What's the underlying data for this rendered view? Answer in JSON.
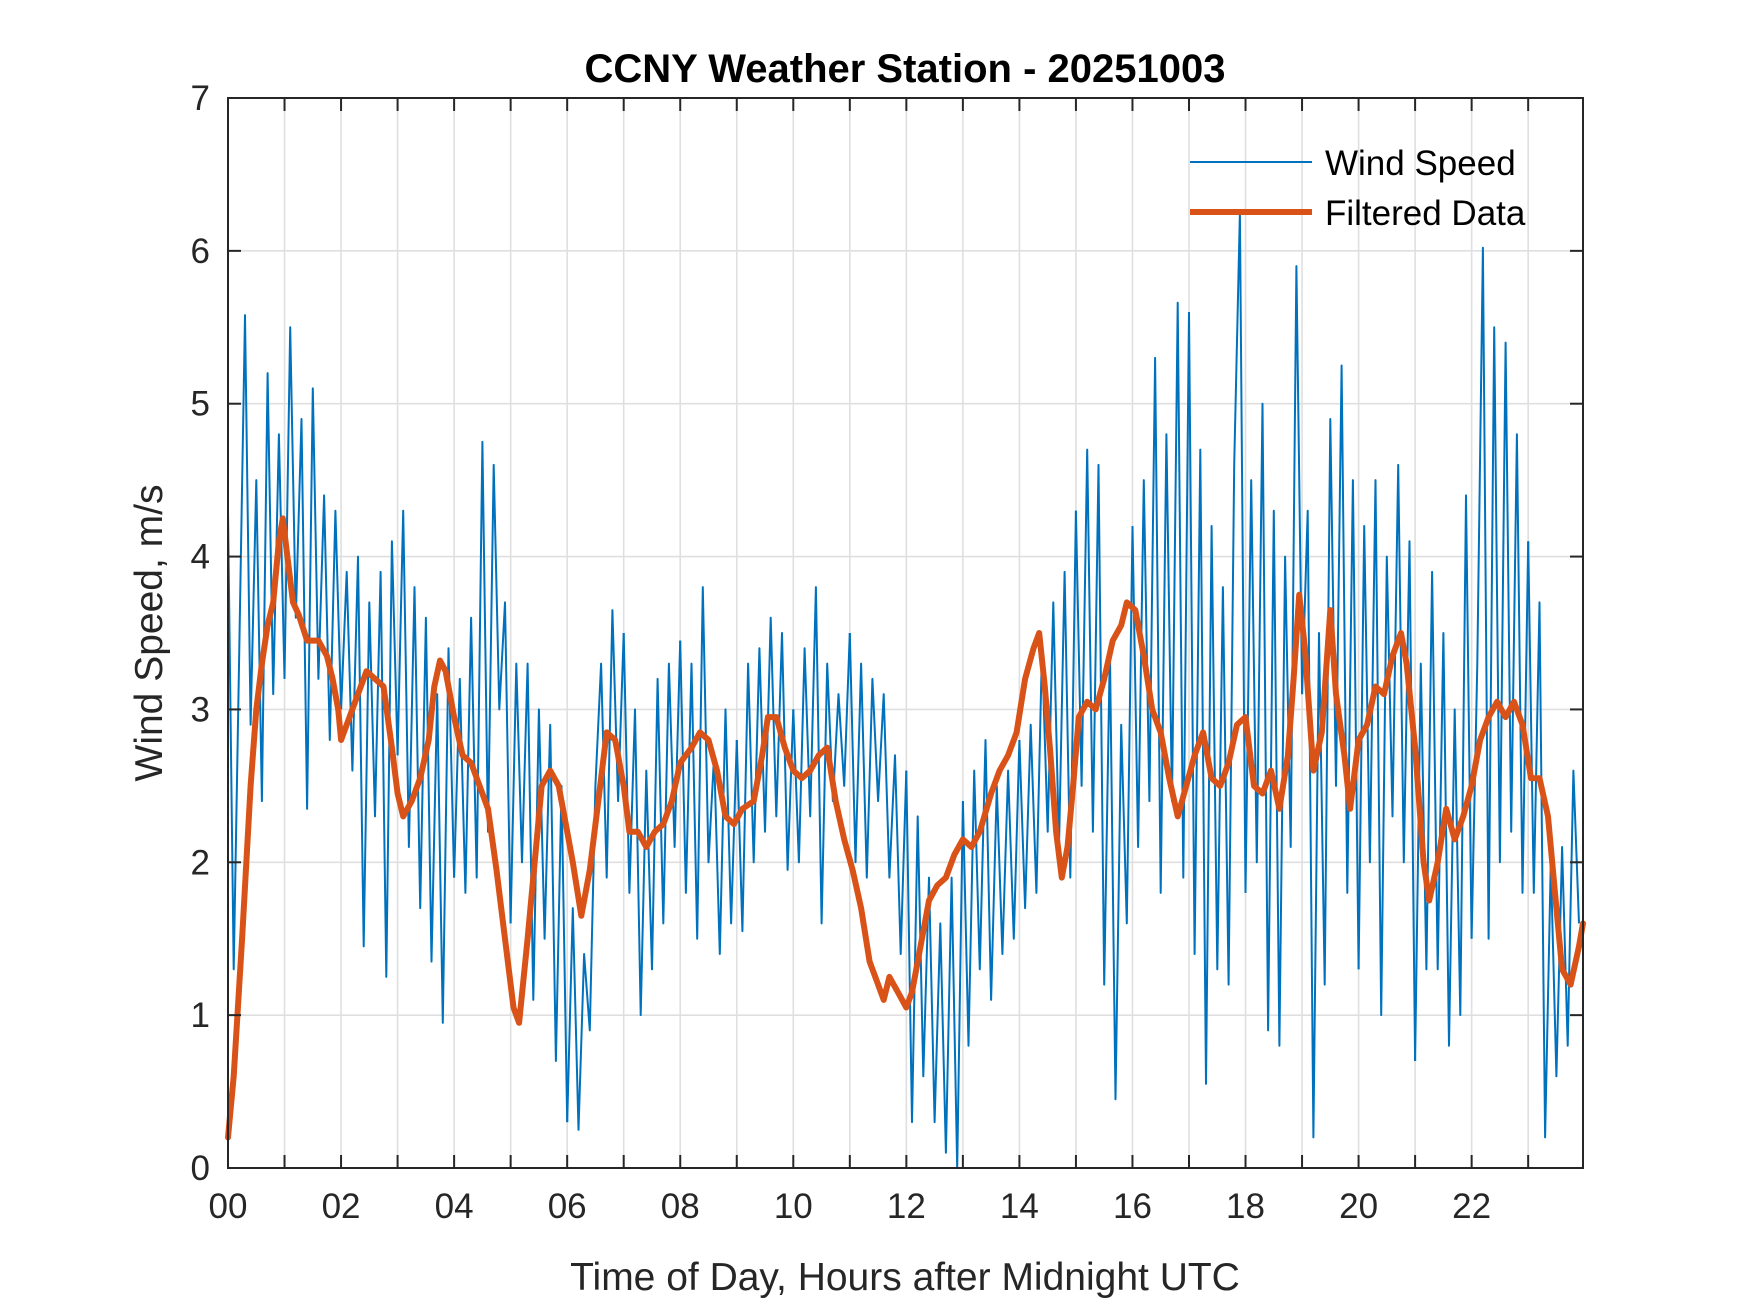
{
  "chart_data": {
    "type": "line",
    "title": "CCNY Weather Station - 20251003",
    "xlabel": "Time of Day, Hours after Midnight UTC",
    "ylabel": "Wind Speed, m/s",
    "xlim": [
      0,
      23.97
    ],
    "ylim": [
      0,
      7
    ],
    "grid": true,
    "legend_position": "top-right",
    "x_ticks": [
      0,
      2,
      4,
      6,
      8,
      10,
      12,
      14,
      16,
      18,
      20,
      22
    ],
    "x_tick_labels": [
      "00",
      "02",
      "04",
      "06",
      "08",
      "10",
      "12",
      "14",
      "16",
      "18",
      "20",
      "22"
    ],
    "x_minor_grid_step": 1,
    "y_ticks": [
      0,
      1,
      2,
      3,
      4,
      5,
      6,
      7
    ],
    "y_tick_labels": [
      "0",
      "1",
      "2",
      "3",
      "4",
      "5",
      "6",
      "7"
    ],
    "colors": {
      "wind_speed": "#0072BD",
      "filtered": "#D95319"
    },
    "series": [
      {
        "name": "Wind Speed",
        "x_start": 0,
        "x_step": 0.1,
        "values": [
          4.3,
          1.3,
          3.4,
          5.58,
          2.9,
          4.5,
          2.4,
          5.2,
          3.1,
          4.8,
          3.2,
          5.5,
          3.6,
          4.9,
          2.35,
          5.1,
          3.2,
          4.4,
          2.8,
          4.3,
          3.0,
          3.9,
          2.6,
          4.0,
          1.45,
          3.7,
          2.3,
          3.9,
          1.25,
          4.1,
          2.7,
          4.3,
          2.1,
          3.8,
          1.7,
          3.6,
          1.35,
          3.1,
          0.95,
          3.4,
          1.9,
          3.2,
          1.8,
          3.6,
          1.9,
          4.75,
          2.2,
          4.6,
          3.0,
          3.7,
          1.6,
          3.3,
          2.0,
          3.3,
          1.1,
          3.0,
          1.5,
          2.9,
          0.7,
          2.5,
          0.3,
          1.7,
          0.25,
          1.4,
          0.9,
          2.5,
          3.3,
          1.9,
          3.65,
          2.4,
          3.5,
          1.8,
          3.0,
          1.0,
          2.6,
          1.3,
          3.2,
          1.6,
          3.3,
          2.1,
          3.45,
          1.8,
          3.3,
          1.5,
          3.8,
          2.0,
          2.7,
          1.4,
          3.0,
          1.6,
          2.8,
          1.55,
          3.3,
          2.0,
          3.4,
          2.2,
          3.6,
          2.3,
          3.5,
          1.95,
          3.0,
          2.0,
          3.4,
          2.3,
          3.8,
          1.6,
          3.3,
          2.4,
          3.1,
          2.5,
          3.5,
          2.0,
          3.3,
          1.9,
          3.2,
          2.4,
          3.1,
          1.9,
          2.7,
          1.4,
          2.6,
          0.3,
          2.3,
          0.6,
          1.9,
          0.3,
          1.6,
          0.1,
          1.9,
          0.0,
          2.4,
          0.8,
          2.6,
          1.3,
          2.8,
          1.1,
          2.5,
          1.4,
          2.6,
          1.5,
          2.8,
          1.7,
          2.9,
          1.8,
          3.4,
          2.2,
          3.7,
          2.1,
          3.9,
          1.9,
          4.3,
          2.5,
          4.7,
          2.2,
          4.6,
          1.2,
          3.4,
          0.45,
          2.9,
          1.6,
          4.2,
          2.1,
          4.5,
          2.4,
          5.3,
          1.8,
          4.8,
          2.4,
          5.66,
          1.9,
          5.6,
          1.4,
          4.7,
          0.55,
          4.2,
          1.3,
          3.8,
          1.2,
          4.6,
          6.25,
          1.8,
          4.5,
          2.0,
          5.0,
          0.9,
          4.3,
          0.8,
          4.0,
          2.1,
          5.9,
          3.1,
          4.3,
          0.2,
          3.5,
          1.2,
          4.9,
          2.5,
          5.25,
          1.8,
          4.5,
          1.3,
          4.2,
          2.0,
          4.5,
          1.0,
          4.0,
          2.3,
          4.6,
          2.0,
          4.1,
          0.7,
          3.3,
          1.3,
          3.9,
          1.3,
          3.5,
          0.8,
          3.0,
          1.0,
          4.4,
          1.5,
          3.3,
          6.02,
          1.5,
          5.5,
          2.0,
          5.4,
          2.2,
          4.8,
          1.8,
          4.1,
          1.8,
          3.7,
          0.2,
          2.0,
          0.6,
          2.1,
          0.8,
          2.6,
          1.6
        ]
      },
      {
        "name": "Filtered Data",
        "x": [
          0.0,
          0.1,
          0.25,
          0.4,
          0.5,
          0.6,
          0.7,
          0.8,
          0.9,
          0.97,
          1.05,
          1.15,
          1.25,
          1.4,
          1.6,
          1.75,
          1.85,
          1.95,
          2.0,
          2.15,
          2.3,
          2.45,
          2.6,
          2.75,
          2.9,
          3.0,
          3.1,
          3.25,
          3.4,
          3.55,
          3.65,
          3.75,
          3.85,
          4.0,
          4.15,
          4.3,
          4.45,
          4.6,
          4.75,
          4.9,
          5.05,
          5.15,
          5.3,
          5.45,
          5.55,
          5.7,
          5.85,
          6.0,
          6.1,
          6.25,
          6.4,
          6.55,
          6.7,
          6.85,
          7.0,
          7.1,
          7.25,
          7.4,
          7.55,
          7.7,
          7.85,
          8.0,
          8.2,
          8.35,
          8.5,
          8.65,
          8.8,
          8.95,
          9.1,
          9.3,
          9.45,
          9.55,
          9.7,
          9.85,
          10.0,
          10.15,
          10.3,
          10.45,
          10.6,
          10.75,
          10.9,
          11.05,
          11.2,
          11.35,
          11.5,
          11.6,
          11.7,
          11.85,
          12.0,
          12.1,
          12.25,
          12.4,
          12.55,
          12.7,
          12.85,
          13.0,
          13.15,
          13.3,
          13.5,
          13.65,
          13.8,
          13.95,
          14.1,
          14.25,
          14.35,
          14.45,
          14.55,
          14.65,
          14.75,
          14.85,
          14.95,
          15.05,
          15.2,
          15.35,
          15.5,
          15.65,
          15.8,
          15.9,
          16.05,
          16.2,
          16.35,
          16.5,
          16.65,
          16.8,
          16.95,
          17.1,
          17.25,
          17.4,
          17.55,
          17.7,
          17.85,
          18.0,
          18.15,
          18.3,
          18.45,
          18.6,
          18.75,
          18.85,
          18.95,
          19.05,
          19.2,
          19.35,
          19.5,
          19.6,
          19.75,
          19.85,
          20.0,
          20.15,
          20.3,
          20.45,
          20.6,
          20.75,
          20.85,
          21.0,
          21.15,
          21.25,
          21.4,
          21.55,
          21.7,
          21.85,
          22.0,
          22.15,
          22.3,
          22.45,
          22.6,
          22.75,
          22.9,
          23.05,
          23.2,
          23.35,
          23.5,
          23.6,
          23.75,
          23.9,
          23.97
        ],
        "values": [
          0.2,
          0.6,
          1.5,
          2.5,
          3.0,
          3.3,
          3.55,
          3.7,
          4.1,
          4.25,
          4.0,
          3.7,
          3.62,
          3.45,
          3.45,
          3.35,
          3.2,
          3.0,
          2.8,
          2.95,
          3.1,
          3.25,
          3.2,
          3.15,
          2.75,
          2.45,
          2.3,
          2.4,
          2.55,
          2.8,
          3.15,
          3.32,
          3.25,
          2.95,
          2.7,
          2.65,
          2.5,
          2.35,
          1.95,
          1.5,
          1.05,
          0.95,
          1.5,
          2.1,
          2.5,
          2.6,
          2.5,
          2.2,
          2.0,
          1.65,
          1.95,
          2.4,
          2.85,
          2.8,
          2.5,
          2.2,
          2.2,
          2.1,
          2.2,
          2.25,
          2.4,
          2.65,
          2.75,
          2.85,
          2.8,
          2.6,
          2.3,
          2.25,
          2.35,
          2.4,
          2.7,
          2.95,
          2.95,
          2.75,
          2.6,
          2.55,
          2.6,
          2.7,
          2.75,
          2.4,
          2.15,
          1.95,
          1.7,
          1.35,
          1.2,
          1.1,
          1.25,
          1.15,
          1.05,
          1.15,
          1.45,
          1.75,
          1.85,
          1.9,
          2.05,
          2.15,
          2.1,
          2.2,
          2.45,
          2.6,
          2.7,
          2.85,
          3.2,
          3.4,
          3.5,
          3.15,
          2.7,
          2.2,
          1.9,
          2.1,
          2.5,
          2.95,
          3.05,
          3.0,
          3.2,
          3.45,
          3.55,
          3.7,
          3.65,
          3.35,
          3.0,
          2.85,
          2.55,
          2.3,
          2.5,
          2.7,
          2.85,
          2.55,
          2.5,
          2.65,
          2.9,
          2.95,
          2.5,
          2.45,
          2.6,
          2.35,
          2.7,
          3.2,
          3.75,
          3.4,
          2.6,
          2.85,
          3.65,
          3.1,
          2.7,
          2.35,
          2.8,
          2.9,
          3.15,
          3.1,
          3.35,
          3.5,
          3.3,
          2.75,
          2.0,
          1.75,
          2.0,
          2.35,
          2.15,
          2.3,
          2.5,
          2.8,
          2.95,
          3.05,
          2.95,
          3.05,
          2.9,
          2.55,
          2.55,
          2.3,
          1.7,
          1.3,
          1.2,
          1.45,
          1.6
        ]
      }
    ]
  },
  "legend": {
    "items": [
      {
        "label": "Wind Speed",
        "series": "wind_speed"
      },
      {
        "label": "Filtered Data",
        "series": "filtered"
      }
    ]
  }
}
